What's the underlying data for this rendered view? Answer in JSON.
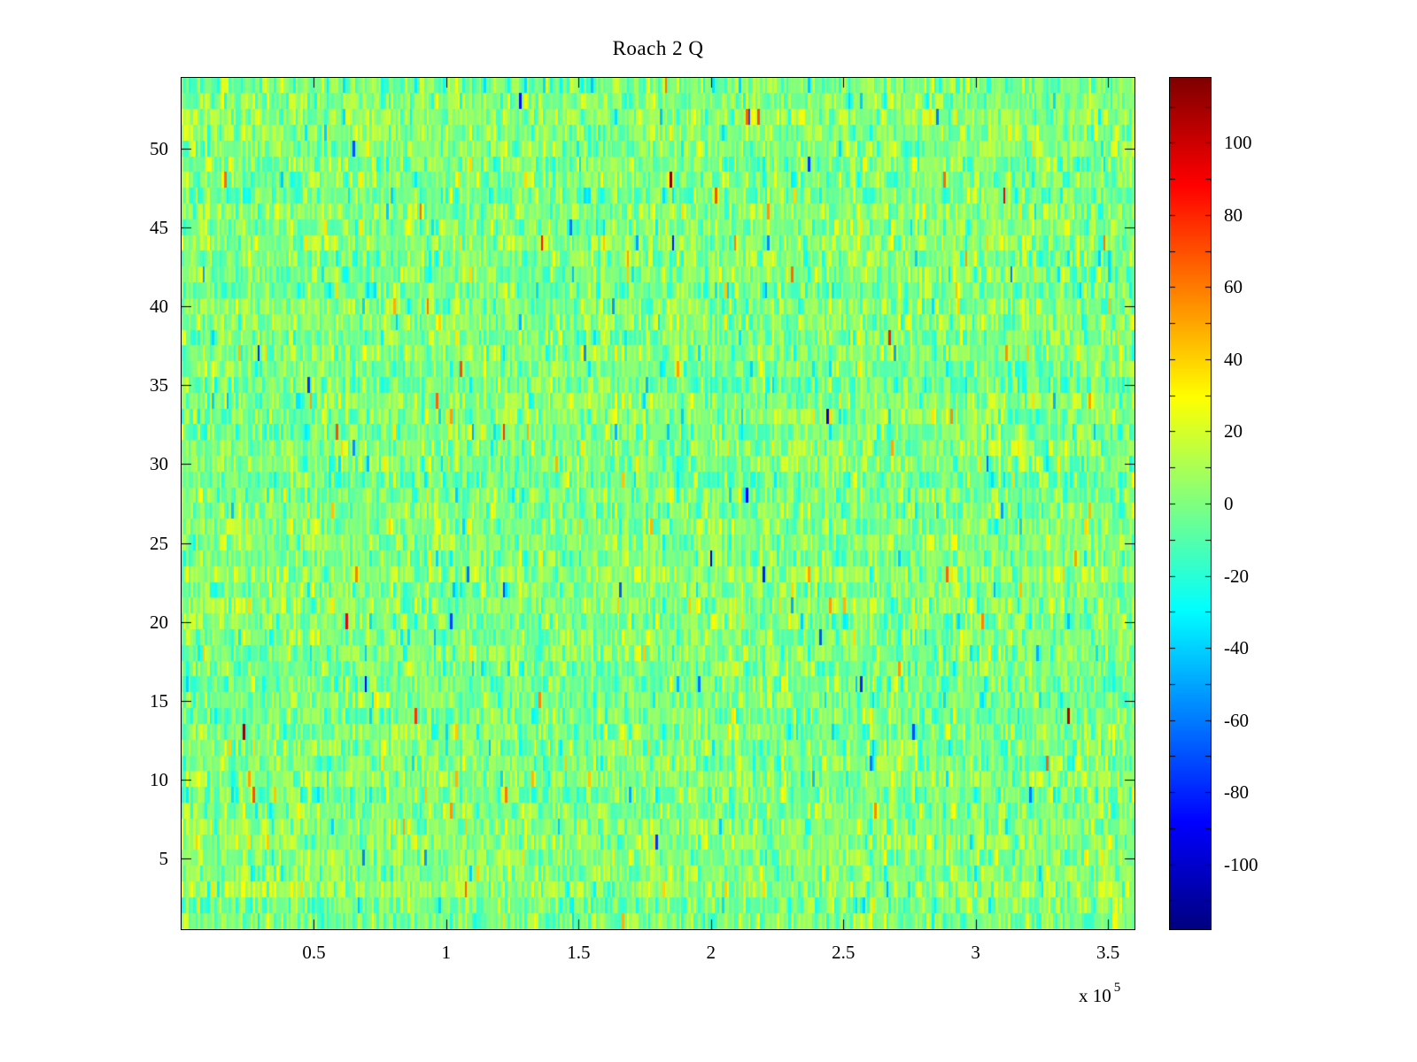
{
  "chart_data": {
    "type": "heatmap",
    "title": "Roach 2 Q",
    "xlabel": "",
    "ylabel": "",
    "xlim": [
      0,
      360000
    ],
    "ylim": [
      0.5,
      54.5
    ],
    "rows": 54,
    "cols": 400,
    "clim": [
      -118,
      118
    ],
    "colormap": "jet",
    "grid": false,
    "legend": "none",
    "x_ticks": [
      50000,
      100000,
      150000,
      200000,
      250000,
      300000,
      350000
    ],
    "x_tick_labels": [
      "0.5",
      "1",
      "1.5",
      "2",
      "2.5",
      "3",
      "3.5"
    ],
    "x_multiplier": {
      "base": "x 10",
      "exponent": "5"
    },
    "y_ticks": [
      5,
      10,
      15,
      20,
      25,
      30,
      35,
      40,
      45,
      50
    ],
    "y_tick_labels": [
      "5",
      "10",
      "15",
      "20",
      "25",
      "30",
      "35",
      "40",
      "45",
      "50"
    ],
    "colorbar": {
      "tick_values": [
        100,
        80,
        60,
        40,
        20,
        0,
        -20,
        -40,
        -60,
        -80,
        -100
      ],
      "tick_labels": [
        "100",
        "80",
        "60",
        "40",
        "20",
        "0",
        "-20",
        "-40",
        "-60",
        "-80",
        "-100"
      ],
      "minor_tick_step": 10
    },
    "data_description": "Dense random-noise image, 54 rows by ~3.6e5 samples; values cluster near 0 (green/teal) with sparse excursions toward +/-110 (orange, red, blue)",
    "noise": {
      "seed": 1234,
      "mean": 0,
      "std": 13,
      "row_band_std": 2.5,
      "spike_prob": 0.02,
      "spike_std": 38
    }
  }
}
